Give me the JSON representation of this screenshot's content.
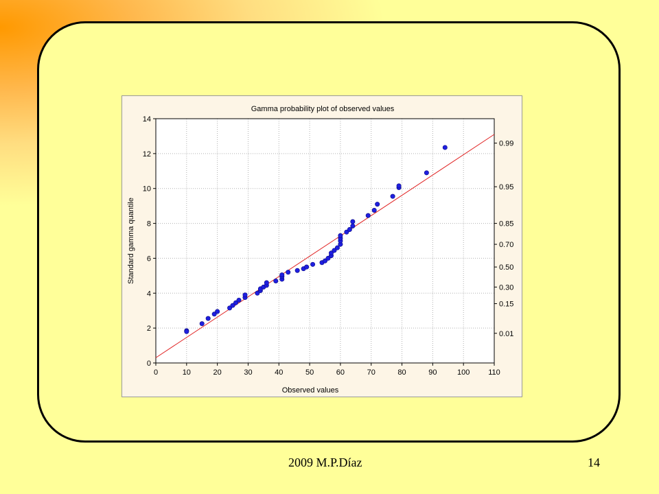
{
  "footer": {
    "author": "2009   M.P.Díaz",
    "page_number": "14"
  },
  "chart_data": {
    "type": "scatter",
    "title": "Gamma probability plot of observed values",
    "xlabel": "Observed values",
    "ylabel": "Standard gamma quantile",
    "xlim": [
      0,
      110
    ],
    "ylim": [
      0,
      14
    ],
    "x_ticks": [
      0,
      10,
      20,
      30,
      40,
      50,
      60,
      70,
      80,
      90,
      100,
      110
    ],
    "y_ticks": [
      0,
      2,
      4,
      6,
      8,
      10,
      12,
      14
    ],
    "right_axis_labels": [
      {
        "label": "0.99",
        "quantile": 12.6
      },
      {
        "label": "0.95",
        "quantile": 10.1
      },
      {
        "label": "0.85",
        "quantile": 8.0
      },
      {
        "label": "0.70",
        "quantile": 6.8
      },
      {
        "label": "0.50",
        "quantile": 5.5
      },
      {
        "label": "0.30",
        "quantile": 4.35
      },
      {
        "label": "0.15",
        "quantile": 3.4
      },
      {
        "label": "0.01",
        "quantile": 1.7
      }
    ],
    "grid": true,
    "marker_color": "#1f1fe0",
    "line_color": "#e02020",
    "fit_line": {
      "x": [
        0,
        110
      ],
      "y": [
        0.3,
        13.1
      ]
    },
    "points": [
      [
        10,
        1.85
      ],
      [
        10,
        1.8
      ],
      [
        15,
        2.25
      ],
      [
        17,
        2.55
      ],
      [
        19,
        2.8
      ],
      [
        20,
        2.95
      ],
      [
        24,
        3.15
      ],
      [
        25,
        3.3
      ],
      [
        26,
        3.45
      ],
      [
        27,
        3.6
      ],
      [
        29,
        3.75
      ],
      [
        29,
        3.9
      ],
      [
        33,
        4.0
      ],
      [
        34,
        4.15
      ],
      [
        34,
        4.25
      ],
      [
        35,
        4.35
      ],
      [
        36,
        4.45
      ],
      [
        36,
        4.6
      ],
      [
        39,
        4.7
      ],
      [
        41,
        4.8
      ],
      [
        41,
        4.95
      ],
      [
        41,
        5.05
      ],
      [
        43,
        5.2
      ],
      [
        46,
        5.3
      ],
      [
        48,
        5.4
      ],
      [
        49,
        5.5
      ],
      [
        51,
        5.65
      ],
      [
        54,
        5.75
      ],
      [
        55,
        5.85
      ],
      [
        56,
        6.0
      ],
      [
        57,
        6.15
      ],
      [
        57,
        6.3
      ],
      [
        58,
        6.45
      ],
      [
        59,
        6.6
      ],
      [
        60,
        6.8
      ],
      [
        60,
        7.0
      ],
      [
        60,
        7.15
      ],
      [
        60,
        7.3
      ],
      [
        62,
        7.5
      ],
      [
        63,
        7.65
      ],
      [
        64,
        7.85
      ],
      [
        64,
        8.1
      ],
      [
        69,
        8.45
      ],
      [
        71,
        8.75
      ],
      [
        72,
        9.1
      ],
      [
        77,
        9.55
      ],
      [
        79,
        10.05
      ],
      [
        79,
        10.15
      ],
      [
        88,
        10.9
      ],
      [
        94,
        12.35
      ]
    ]
  }
}
